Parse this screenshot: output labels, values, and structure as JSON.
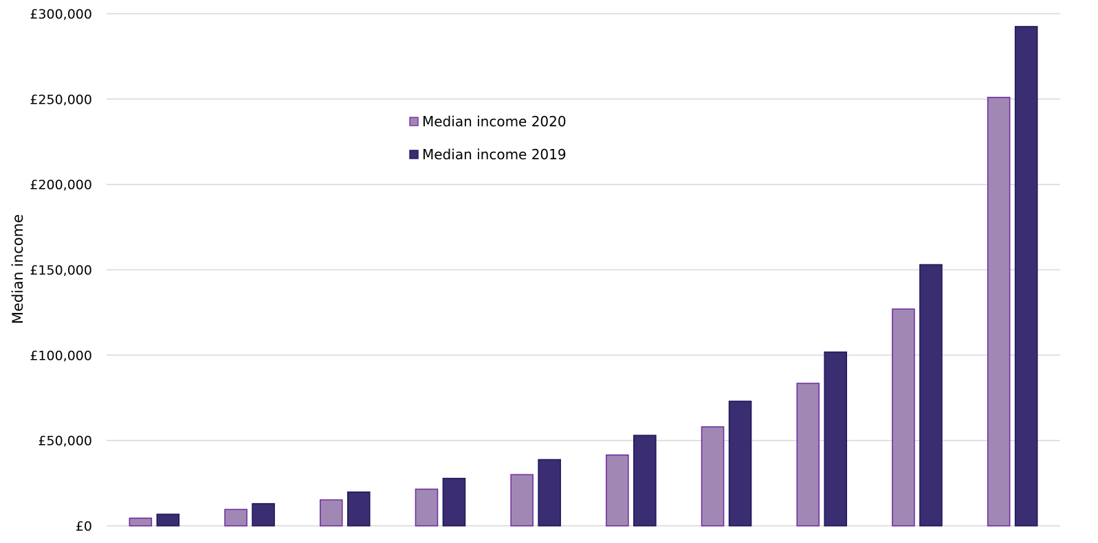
{
  "chart_data": {
    "type": "bar",
    "title": "",
    "xlabel": "",
    "ylabel": "Median income",
    "ylim": [
      0,
      300000
    ],
    "yticks": [
      {
        "value": 0,
        "label": "£0"
      },
      {
        "value": 50000,
        "label": "£50,000"
      },
      {
        "value": 100000,
        "label": "£100,000"
      },
      {
        "value": 150000,
        "label": "£150,000"
      },
      {
        "value": 200000,
        "label": "£200,000"
      },
      {
        "value": 250000,
        "label": "£250,000"
      },
      {
        "value": 300000,
        "label": "£300,000"
      }
    ],
    "categories": [
      "",
      "",
      "",
      "",
      "",
      "",
      "",
      "",
      "",
      ""
    ],
    "series": [
      {
        "name": "Median income 2020",
        "color": "#a188b4",
        "stroke": "#7030a0",
        "values": [
          4500,
          9600,
          15200,
          21500,
          30000,
          41500,
          58000,
          83500,
          127000,
          251000
        ]
      },
      {
        "name": "Median income 2019",
        "color": "#3a2d72",
        "stroke": "#1f1a5a",
        "values": [
          6800,
          13000,
          19800,
          27800,
          38800,
          53000,
          73000,
          101800,
          153000,
          292500
        ]
      }
    ],
    "grid": true,
    "legend_position": "upper-middle-left",
    "colors": {
      "gridline": "#d9d9d9",
      "background": "#ffffff"
    }
  }
}
